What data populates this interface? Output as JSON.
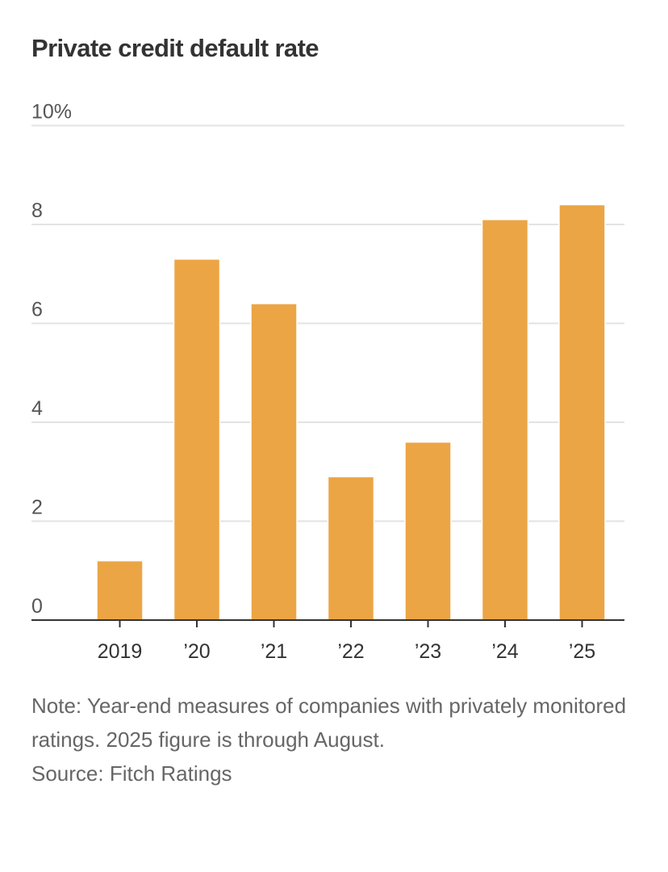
{
  "chart_data": {
    "type": "bar",
    "title": "Private credit default rate",
    "categories": [
      "2019",
      "’20",
      "’21",
      "’22",
      "’23",
      "’24",
      "’25"
    ],
    "values": [
      1.2,
      7.3,
      6.4,
      2.9,
      3.6,
      8.1,
      8.4
    ],
    "xlabel": "",
    "ylabel": "",
    "ylim": [
      0,
      10
    ],
    "yticks": [
      0,
      2,
      4,
      6,
      8,
      10
    ],
    "ytick_labels": [
      "0",
      "2",
      "4",
      "6",
      "8",
      "10%"
    ],
    "grid": true,
    "legend": "none",
    "bar_color": "#eca545",
    "note": "Note: Year-end measures of companies with privately monitored ratings. 2025 figure is through August.",
    "source": "Source: Fitch Ratings"
  }
}
